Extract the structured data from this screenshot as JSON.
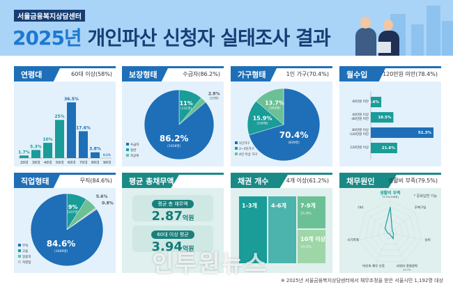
{
  "header": {
    "org": "서울금융복지상담센터",
    "year": "2025년",
    "title": " 개인파산 신청자 실태조사 결과"
  },
  "colors": {
    "blue": "#1e6fb8",
    "teal": "#1a9c98",
    "green": "#6cc095",
    "gray": "#c9c9c9",
    "header_bg": "#a9d4f7"
  },
  "cards": {
    "age": {
      "title": "연령대",
      "subtitle": "60대 이상(58%)"
    },
    "support": {
      "title": "보장형태",
      "subtitle": "수급자(86.2%)"
    },
    "household": {
      "title": "가구형태",
      "subtitle": "1인 가구(70.4%)"
    },
    "income": {
      "title": "월수입",
      "subtitle": "120만원 미만(78.4%)"
    },
    "job": {
      "title": "직업형태",
      "subtitle": "무직(84.6%)"
    },
    "debt": {
      "title": "평균 총채무액",
      "avg_label": "평균 총 채무액",
      "avg_value": "2.87",
      "avg_unit": "억원",
      "senior_label": "60대 이상 평균",
      "senior_value": "3.94",
      "senior_unit": "억원"
    },
    "creditors": {
      "title": "채권 개수",
      "subtitle": "4개 이상(61.2%)"
    },
    "cause": {
      "title": "채무원인",
      "subtitle": "생활비 부족(79.5%)",
      "note": "* 중복답변 가능"
    }
  },
  "chart_data": [
    {
      "type": "bar",
      "id": "age",
      "categories": [
        "20대",
        "30대",
        "40대",
        "50대",
        "60대",
        "70대",
        "80대",
        "90대"
      ],
      "values": [
        1.7,
        5.3,
        10,
        25,
        36.5,
        17.6,
        3.8,
        0.1
      ],
      "labels": [
        "1.7%",
        "5.3%",
        "10%",
        "25%",
        "36.5%",
        "17.6%",
        "3.8%",
        "0.1%"
      ]
    },
    {
      "type": "pie",
      "id": "support",
      "slices": [
        {
          "name": "일반",
          "value": 11,
          "label": "11%",
          "count": "(131명)",
          "color": "#1a9c98"
        },
        {
          "name": "차상위",
          "value": 2.8,
          "label": "2.8%",
          "count": "(33명)",
          "color": "#6cc095"
        },
        {
          "name": "수급자",
          "value": 86.2,
          "label": "86.2%",
          "count": "(1028명)",
          "color": "#1e6fb8"
        }
      ]
    },
    {
      "type": "pie",
      "id": "household",
      "slices": [
        {
          "name": "1인가구",
          "value": 70.4,
          "label": "70.4%",
          "count": "(839명)",
          "color": "#1e6fb8"
        },
        {
          "name": "2~3인가구",
          "value": 15.9,
          "label": "15.9%",
          "count": "(190명)",
          "color": "#1a9c98"
        },
        {
          "name": "4인 이상 가구",
          "value": 13.7,
          "label": "13.7%",
          "count": "(163명)",
          "color": "#6cc095"
        }
      ]
    },
    {
      "type": "bar",
      "id": "income",
      "orientation": "horizontal",
      "categories": [
        "40만원 미만",
        "40만원 이상 -80만원 미만",
        "80만원 이상 -120만원 미만",
        "120만원 이상"
      ],
      "values": [
        8.6,
        18.5,
        51.3,
        21.6
      ],
      "labels": [
        "8.6%",
        "18.5%",
        "51.3%",
        "21.6%"
      ]
    },
    {
      "type": "pie",
      "id": "job",
      "slices": [
        {
          "name": "고용",
          "value": 9,
          "label": "9%",
          "count": "(107명)",
          "color": "#1a9c98"
        },
        {
          "name": "일용직",
          "value": 5.6,
          "label": "5.6%",
          "color": "#6cc095"
        },
        {
          "name": "자영업",
          "value": 0.8,
          "label": "0.8%",
          "color": "#c9c9c9"
        },
        {
          "name": "무직",
          "value": 84.6,
          "label": "84.6%",
          "count": "(1009명)",
          "color": "#1e6fb8"
        }
      ]
    },
    {
      "type": "treemap",
      "id": "creditors",
      "items": [
        {
          "name": "1-3개",
          "value": 38.8,
          "label": ""
        },
        {
          "name": "4-6개",
          "value": 31.4,
          "label": ""
        },
        {
          "name": "7-9개",
          "value": 15.8,
          "label": "15.8%"
        },
        {
          "name": "10개 이상",
          "value": 14.0,
          "label": "14.0%"
        }
      ]
    },
    {
      "type": "radar",
      "id": "cause",
      "axes": [
        "생활비 부족",
        "주택구입",
        "낭비",
        "사업의 경영압박",
        "타인의 채무 보증",
        "사기피해",
        "기타"
      ],
      "values": [
        79.5,
        8,
        10,
        20.7,
        5,
        8,
        21
      ],
      "labels": [
        "79.5%(948명)",
        "",
        "",
        "20.7%",
        "",
        "",
        ""
      ]
    }
  ],
  "footer": "※ 2025년 서울금융복지상담센터에서 채무조정을 받은 서울시민 1,192명 대상",
  "watermark": "인투원뉴스"
}
